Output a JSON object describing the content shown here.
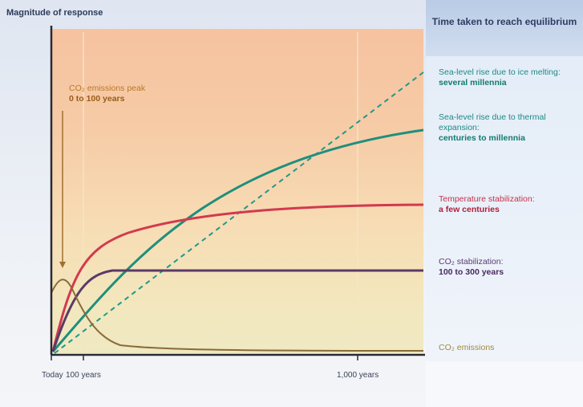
{
  "y_axis_label": "Magnitude of response",
  "panel_title": "Time taken to reach equilibrium",
  "peak_annotation": {
    "text": "CO₂ emissions peak",
    "bold": "0 to 100 years"
  },
  "labels": {
    "ice_melting": {
      "text": "Sea-level rise due to ice melting:",
      "bold": "several millennia"
    },
    "thermal_expansion": {
      "text": "Sea-level rise due to thermal expansion:",
      "bold": "centuries to millennia"
    },
    "temperature": {
      "text": "Temperature stabilization:",
      "bold": "a few centuries"
    },
    "co2_stabilization": {
      "text": "CO₂ stabilization:",
      "bold": "100 to 300 years"
    },
    "co2_emissions": {
      "text": "CO₂ emissions"
    }
  },
  "x_ticks": {
    "today": "Today",
    "hundred": "100 years",
    "thousand": "1,000 years"
  },
  "colors": {
    "ice": "#1f9a8a",
    "thermal": "#1f8f7c",
    "temperature": "#d23a4e",
    "co2_stabilization": "#5b3a68",
    "co2_emissions": "#8a6b3a"
  }
}
